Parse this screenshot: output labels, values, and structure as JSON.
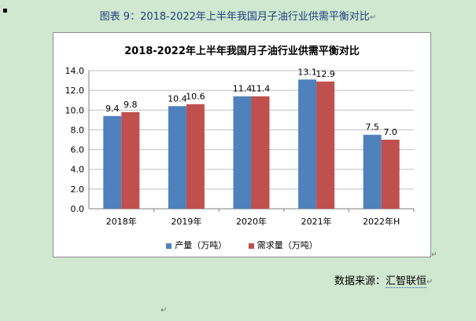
{
  "caption": {
    "text": "图表 9：2018-2022年上半年我国月子油行业供需平衡对比",
    "mark": "↵"
  },
  "source": {
    "prefix": "数据来源：",
    "name": "汇智联恒",
    "mark": "↵"
  },
  "marks": {
    "a": "↵",
    "b": "↵"
  },
  "colors": {
    "production": "#4f81bd",
    "demand": "#c0504d",
    "grid": "#bfbfbf",
    "axis": "#7f7f7f"
  },
  "chart_data": {
    "type": "bar",
    "title": "2018-2022年上半年我国月子油行业供需平衡对比",
    "categories": [
      "2018年",
      "2019年",
      "2020年",
      "2021年",
      "2022年H"
    ],
    "series": [
      {
        "name": "产量（万吨）",
        "values": [
          9.4,
          10.4,
          11.4,
          13.1,
          7.5
        ],
        "color": "#4f81bd"
      },
      {
        "name": "需求量（万吨）",
        "values": [
          9.8,
          10.6,
          11.4,
          12.9,
          7.0
        ],
        "color": "#c0504d"
      }
    ],
    "ylim": [
      0,
      14
    ],
    "yticks": [
      "0.0",
      "2.0",
      "4.0",
      "6.0",
      "8.0",
      "10.0",
      "12.0",
      "14.0"
    ],
    "data_labels": [
      [
        "9.4",
        "10.4",
        "11.4",
        "13.1",
        "7.5"
      ],
      [
        "9.8",
        "10.6",
        "11.4",
        "12.9",
        "7.0"
      ]
    ],
    "grid": true,
    "legend": "bottom"
  }
}
